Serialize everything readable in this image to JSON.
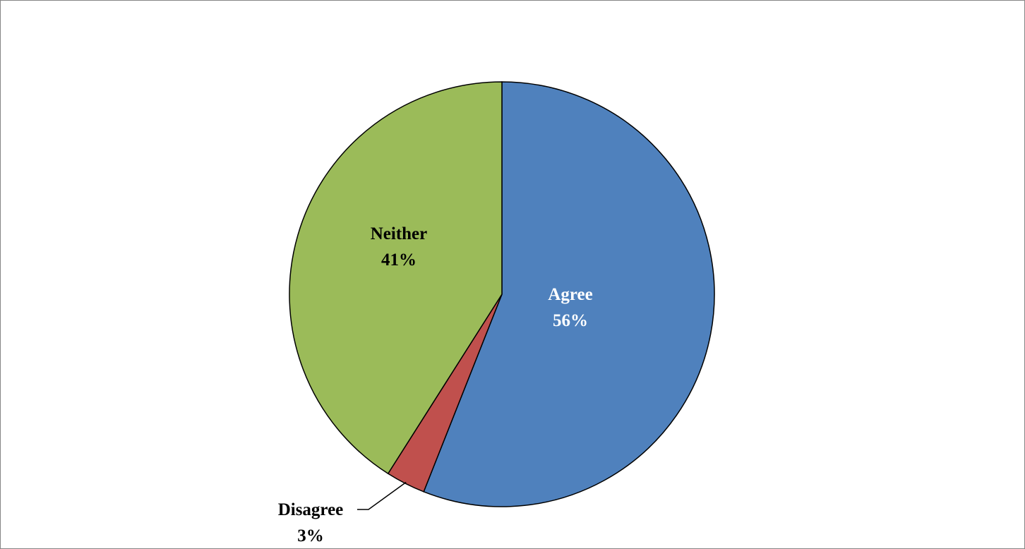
{
  "chart_data": {
    "type": "pie",
    "title": "",
    "start_angle_deg": 0,
    "direction": "clockwise",
    "slices": [
      {
        "label": "Agree",
        "value": 56,
        "value_text": "56%",
        "color": "#4F81BD",
        "label_color": "#ffffff"
      },
      {
        "label": "Disagree",
        "value": 3,
        "value_text": "3%",
        "color": "#C0504D",
        "label_color": "#000000"
      },
      {
        "label": "Neither",
        "value": 41,
        "value_text": "41%",
        "color": "#9BBB59",
        "label_color": "#000000"
      }
    ]
  }
}
